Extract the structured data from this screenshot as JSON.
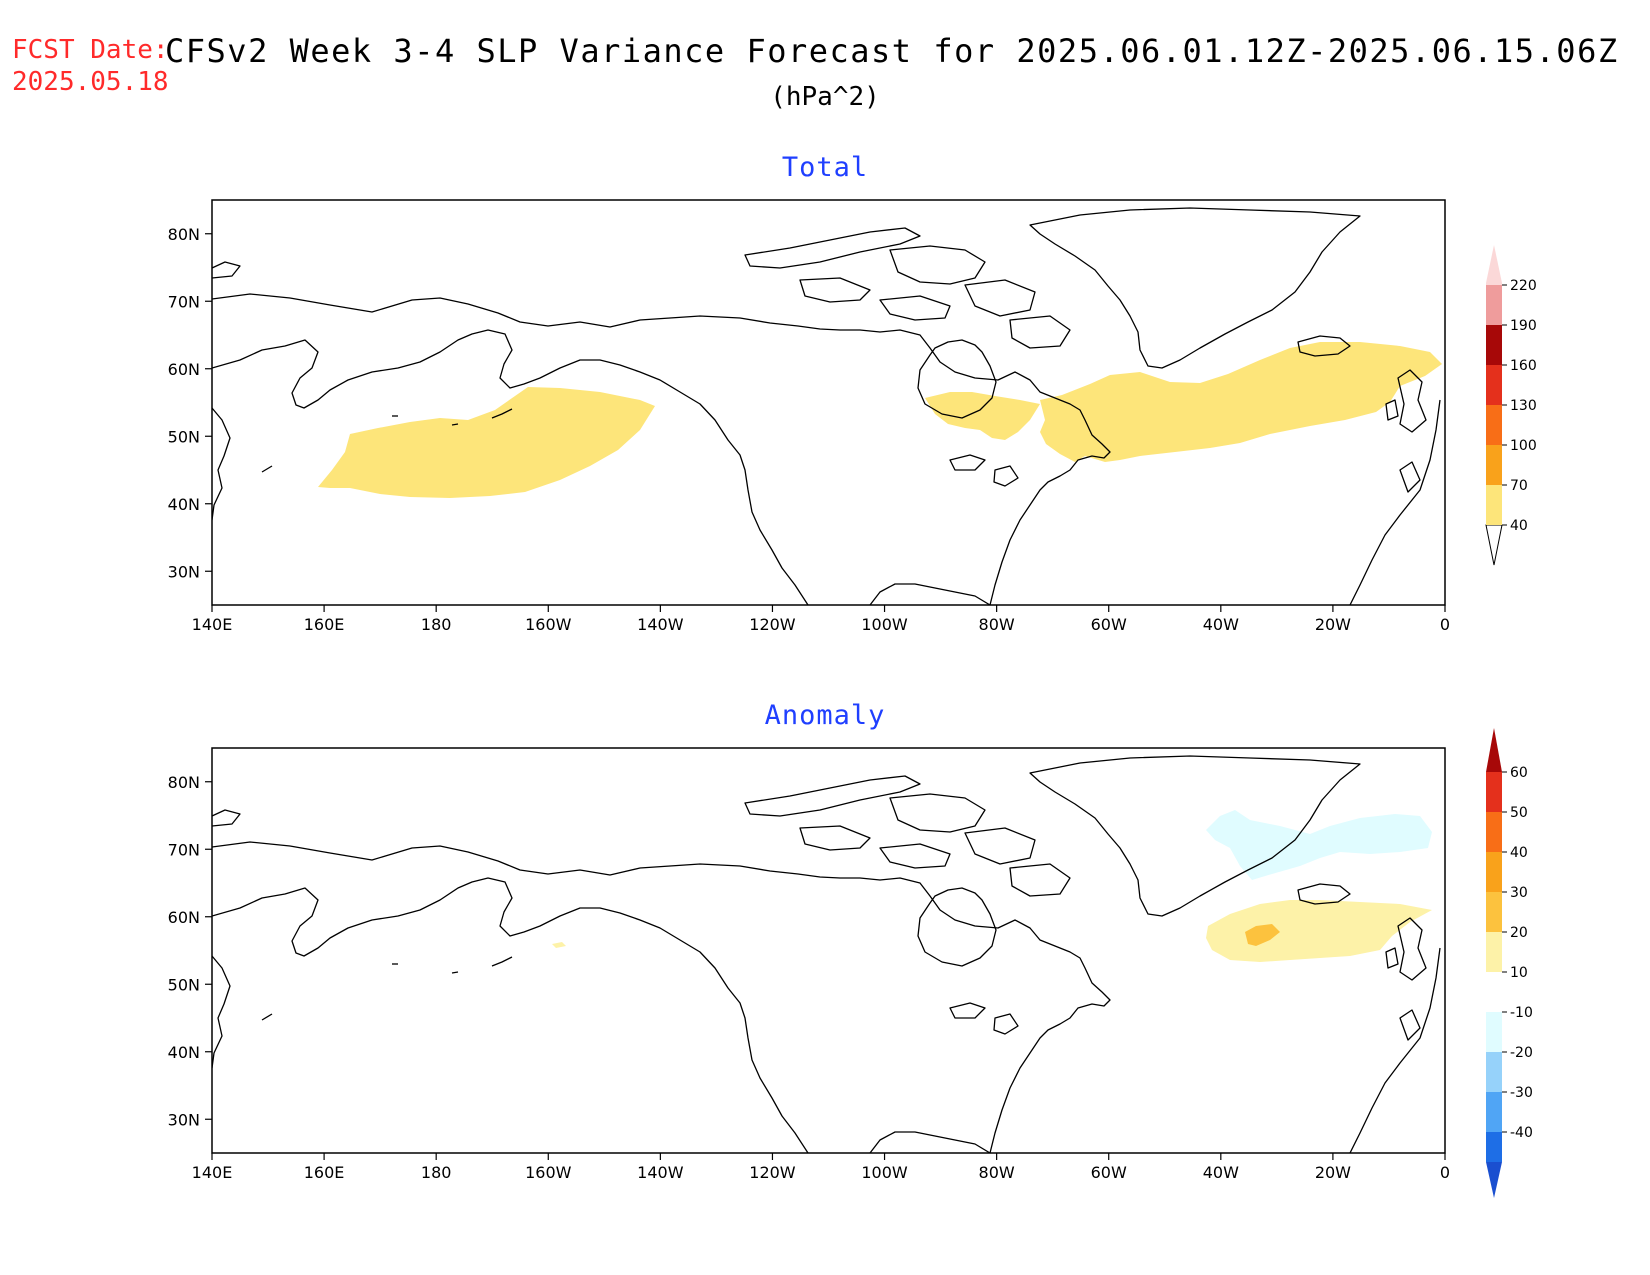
{
  "header": {
    "fcst_label": "FCST Date:",
    "fcst_date": "2025.05.18",
    "title": "CFSv2 Week 3-4 SLP Variance Forecast for 2025.06.01.12Z-2025.06.15.06Z",
    "units": "(hPa^2)"
  },
  "map_extent": {
    "lon_min": 140,
    "lon_max": 360,
    "lat_min": 25,
    "lat_max": 85
  },
  "panels": [
    {
      "title": "Total",
      "x_ticks": [
        "140E",
        "160E",
        "180",
        "160W",
        "140W",
        "120W",
        "100W",
        "80W",
        "60W",
        "40W",
        "20W",
        "0"
      ],
      "y_ticks": [
        "30N",
        "40N",
        "50N",
        "60N",
        "70N",
        "80N"
      ],
      "colorbar": {
        "levels": [
          "40",
          "70",
          "100",
          "130",
          "160",
          "190",
          "220"
        ],
        "colors": [
          "#fde57a",
          "#f9a21b",
          "#f86e17",
          "#e4301c",
          "#a70808",
          "#ef9c9c",
          "#fbd8d8"
        ],
        "top_arrow": "#fbe8e8",
        "bottom_arrow": "#ffffff"
      },
      "shaded_regions": [
        {
          "level": "40-70",
          "color": "#fde57a",
          "name": "North Pacific band"
        },
        {
          "level": "40-70",
          "color": "#fde57a",
          "name": "Hudson Bay area"
        },
        {
          "level": "40-70",
          "color": "#fde57a",
          "name": "North Atlantic band"
        }
      ]
    },
    {
      "title": "Anomaly",
      "x_ticks": [
        "140E",
        "160E",
        "180",
        "160W",
        "140W",
        "120W",
        "100W",
        "80W",
        "60W",
        "40W",
        "20W",
        "0"
      ],
      "y_ticks": [
        "30N",
        "40N",
        "50N",
        "60N",
        "70N",
        "80N"
      ],
      "colorbar": {
        "levels": [
          "60",
          "50",
          "40",
          "30",
          "20",
          "10",
          "-10",
          "-20",
          "-30",
          "-40"
        ],
        "colors_top_to_bottom": [
          "#e4301c",
          "#f86e17",
          "#f9a21b",
          "#fcc23e",
          "#fdf2a8",
          "#ffffff",
          "#e0fcff",
          "#96d2fa",
          "#50a5f5",
          "#1e6ee6"
        ],
        "top_arrow": "#a70808",
        "bottom_arrow": "#1a4fd0"
      },
      "shaded_regions": [
        {
          "level": "10-20",
          "color": "#fdf2a8",
          "name": "North Atlantic positive"
        },
        {
          "level": "20-30",
          "color": "#fcc23e",
          "name": "North Atlantic peak"
        },
        {
          "level": "-20--10",
          "color": "#e0fcff",
          "name": "Greenland Sea negative"
        },
        {
          "level": "10-20",
          "color": "#fdf2a8",
          "name": "Alaska Peninsula dot"
        }
      ]
    }
  ]
}
